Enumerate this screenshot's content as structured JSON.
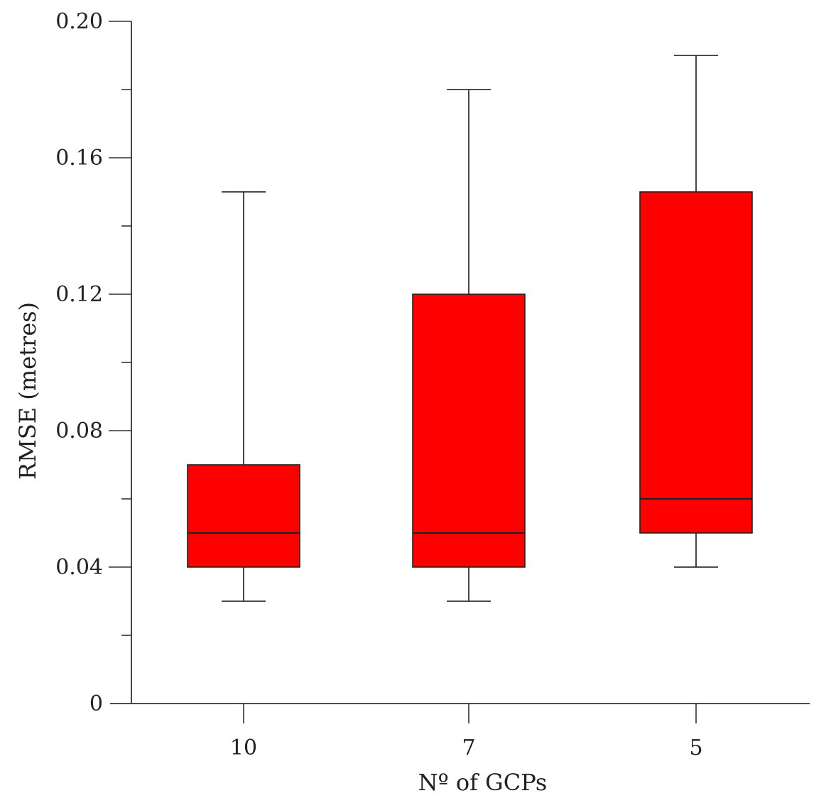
{
  "chart_data": {
    "type": "boxplot",
    "title": "",
    "xlabel": "Nº of GCPs",
    "ylabel": "RMSE (metres)",
    "ylim": [
      0,
      0.2
    ],
    "y_ticks_major": [
      "0",
      "0.04",
      "0.08",
      "0.12",
      "0.16",
      "0.20"
    ],
    "y_tick_values_major": [
      0,
      0.04,
      0.08,
      0.12,
      0.16,
      0.2
    ],
    "y_tick_values_minor": [
      0.02,
      0.06,
      0.1,
      0.14,
      0.18
    ],
    "categories": [
      "10",
      "7",
      "5"
    ],
    "boxes": [
      {
        "label": "10",
        "min": 0.03,
        "q1": 0.04,
        "median": 0.05,
        "q3": 0.07,
        "max": 0.15
      },
      {
        "label": "7",
        "min": 0.03,
        "q1": 0.04,
        "median": 0.05,
        "q3": 0.12,
        "max": 0.18
      },
      {
        "label": "5",
        "min": 0.04,
        "q1": 0.05,
        "median": 0.06,
        "q3": 0.15,
        "max": 0.19
      }
    ],
    "grid": false,
    "legend": "none",
    "colors": {
      "box_fill": "#ff0000",
      "line": "#222222"
    }
  }
}
